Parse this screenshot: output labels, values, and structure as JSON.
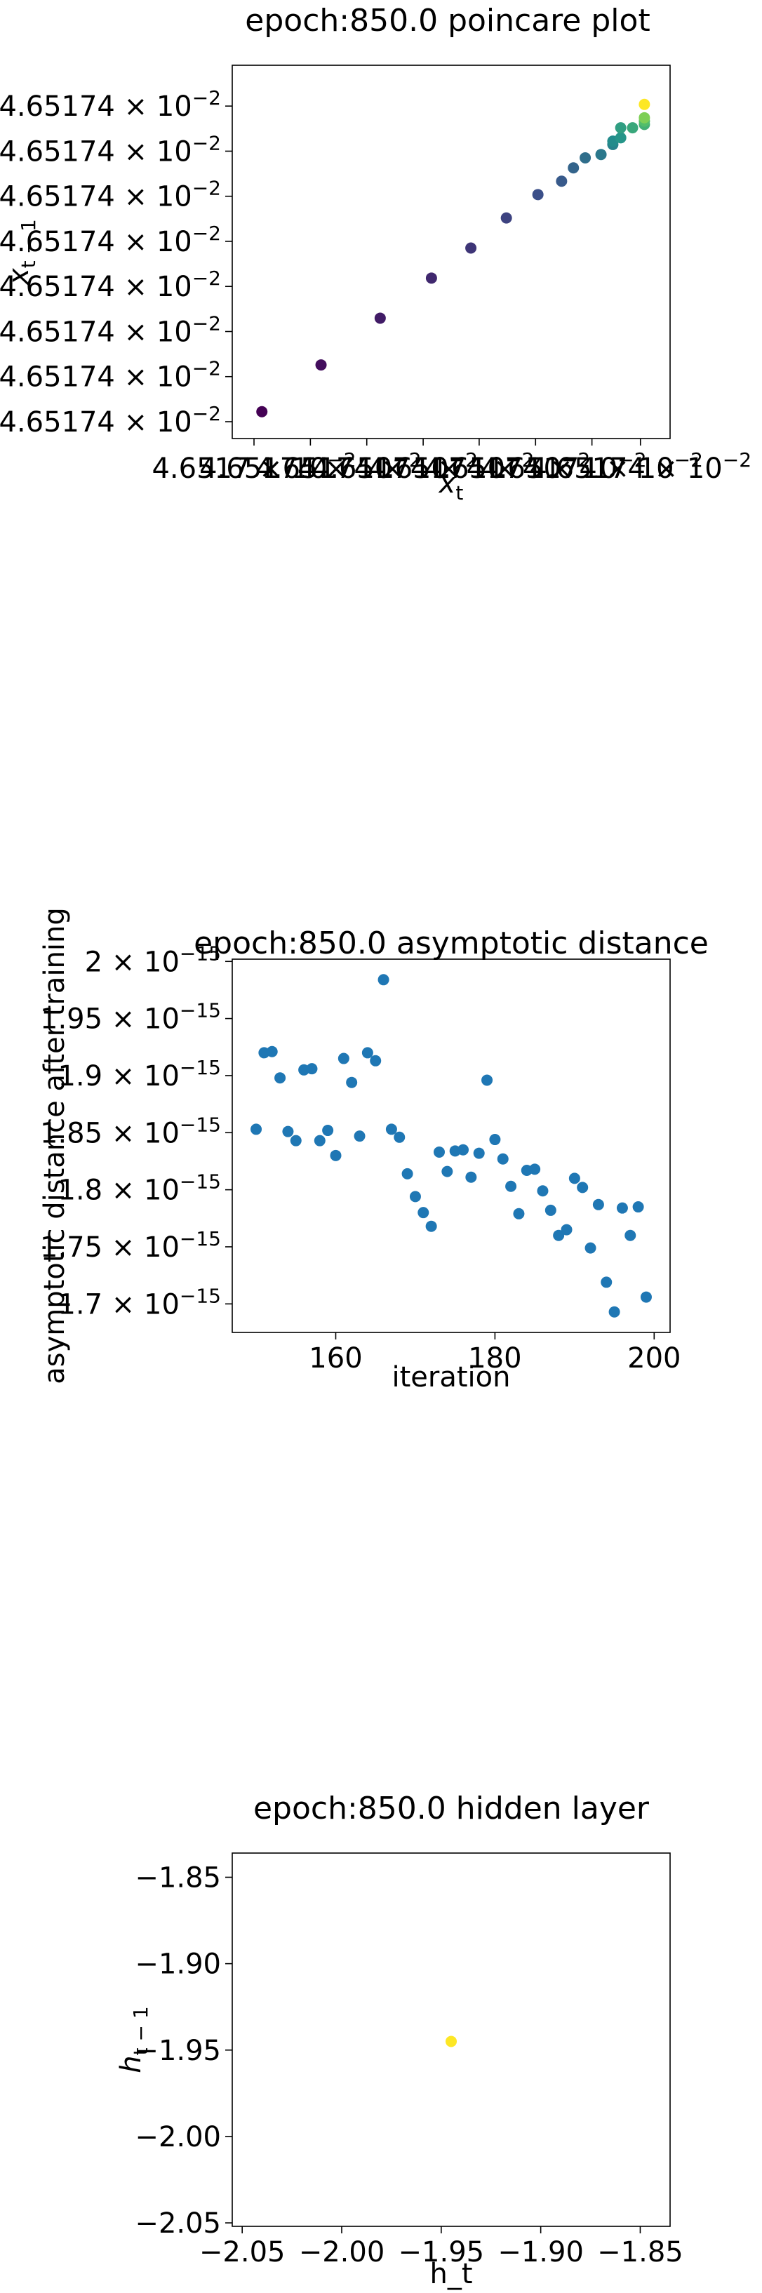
{
  "chart_data": [
    {
      "type": "scatter",
      "title": "epoch:850.0 poincare plot",
      "xlabel": "x_t",
      "ylabel": "x_{t-1}",
      "colormap": "viridis",
      "x_tick_labels": [
        "4.6517",
        "4.65174",
        "4.65174",
        "4.65174",
        "4.65174",
        "4.65174",
        "4.65174",
        "4.65174"
      ],
      "y_tick_labels": [
        "4.65174",
        "4.65174",
        "4.65174",
        "4.65174",
        "4.65174",
        "4.65174",
        "4.65174",
        "4.65174"
      ],
      "tick_multiplier_base": "10",
      "tick_exponent": "-2",
      "points": [
        {
          "x": 0.02,
          "y": 0.03,
          "c": 0.0
        },
        {
          "x": 0.17,
          "y": 0.17,
          "c": 0.04
        },
        {
          "x": 0.32,
          "y": 0.31,
          "c": 0.08
        },
        {
          "x": 0.45,
          "y": 0.43,
          "c": 0.12
        },
        {
          "x": 0.55,
          "y": 0.52,
          "c": 0.16
        },
        {
          "x": 0.64,
          "y": 0.61,
          "c": 0.2
        },
        {
          "x": 0.72,
          "y": 0.68,
          "c": 0.24
        },
        {
          "x": 0.78,
          "y": 0.72,
          "c": 0.28
        },
        {
          "x": 0.81,
          "y": 0.76,
          "c": 0.32
        },
        {
          "x": 0.84,
          "y": 0.79,
          "c": 0.36
        },
        {
          "x": 0.88,
          "y": 0.8,
          "c": 0.4
        },
        {
          "x": 0.91,
          "y": 0.83,
          "c": 0.44
        },
        {
          "x": 0.91,
          "y": 0.84,
          "c": 0.48
        },
        {
          "x": 0.93,
          "y": 0.85,
          "c": 0.52
        },
        {
          "x": 0.93,
          "y": 0.88,
          "c": 0.56
        },
        {
          "x": 0.96,
          "y": 0.88,
          "c": 0.6
        },
        {
          "x": 0.99,
          "y": 0.89,
          "c": 0.64
        },
        {
          "x": 0.99,
          "y": 0.9,
          "c": 0.7
        },
        {
          "x": 0.99,
          "y": 0.91,
          "c": 0.8
        },
        {
          "x": 0.99,
          "y": 0.95,
          "c": 1.0
        }
      ]
    },
    {
      "type": "scatter",
      "title": "epoch:850.0 asymptotic distance",
      "xlabel": "iteration",
      "ylabel": "asymptotic distance after training",
      "xlim": [
        147,
        202
      ],
      "ylim": [
        1.675,
        2.002
      ],
      "x_ticks": [
        160,
        180,
        200
      ],
      "y_ticks": [
        {
          "v": 1.7,
          "m": "1.7"
        },
        {
          "v": 1.75,
          "m": "1.75"
        },
        {
          "v": 1.8,
          "m": "1.8"
        },
        {
          "v": 1.85,
          "m": "1.85"
        },
        {
          "v": 1.9,
          "m": "1.9"
        },
        {
          "v": 1.95,
          "m": "1.95"
        },
        {
          "v": 2.0,
          "m": "2"
        }
      ],
      "tick_multiplier_base": "10",
      "tick_exponent": "-15",
      "y_scale_note": "values in units of 1e-15",
      "color": "#1f77b4",
      "x": [
        150,
        151,
        152,
        153,
        154,
        155,
        156,
        157,
        158,
        159,
        160,
        161,
        162,
        163,
        164,
        165,
        166,
        167,
        168,
        169,
        170,
        171,
        172,
        173,
        174,
        175,
        176,
        177,
        178,
        179,
        180,
        181,
        182,
        183,
        184,
        185,
        186,
        187,
        188,
        189,
        190,
        191,
        192,
        193,
        194,
        195,
        196,
        197,
        198,
        199
      ],
      "y": [
        1.853,
        1.92,
        1.921,
        1.898,
        1.851,
        1.843,
        1.905,
        1.906,
        1.843,
        1.852,
        1.83,
        1.915,
        1.894,
        1.847,
        1.92,
        1.913,
        1.984,
        1.853,
        1.846,
        1.814,
        1.794,
        1.78,
        1.768,
        1.833,
        1.816,
        1.834,
        1.835,
        1.811,
        1.832,
        1.896,
        1.844,
        1.827,
        1.803,
        1.779,
        1.817,
        1.818,
        1.799,
        1.782,
        1.76,
        1.765,
        1.81,
        1.802,
        1.749,
        1.787,
        1.719,
        1.693,
        1.784,
        1.76,
        1.785,
        1.706
      ]
    },
    {
      "type": "scatter",
      "title": "epoch:850.0 hidden layer",
      "xlabel": "h_t",
      "ylabel": "h_{t-1}",
      "xlim": [
        -2.055,
        -1.835
      ],
      "ylim": [
        -2.052,
        -1.836
      ],
      "x_ticks": [
        -2.05,
        -2.0,
        -1.95,
        -1.9,
        -1.85
      ],
      "y_ticks": [
        -2.05,
        -2.0,
        -1.95,
        -1.9,
        -1.85
      ],
      "x_tick_labels": [
        "−2.05",
        "−2.00",
        "−1.95",
        "−1.90",
        "−1.85"
      ],
      "y_tick_labels": [
        "−2.05",
        "−2.00",
        "−1.95",
        "−1.90",
        "−1.85"
      ],
      "color": "#fde725",
      "x": [
        -1.945
      ],
      "y": [
        -1.945
      ]
    }
  ]
}
